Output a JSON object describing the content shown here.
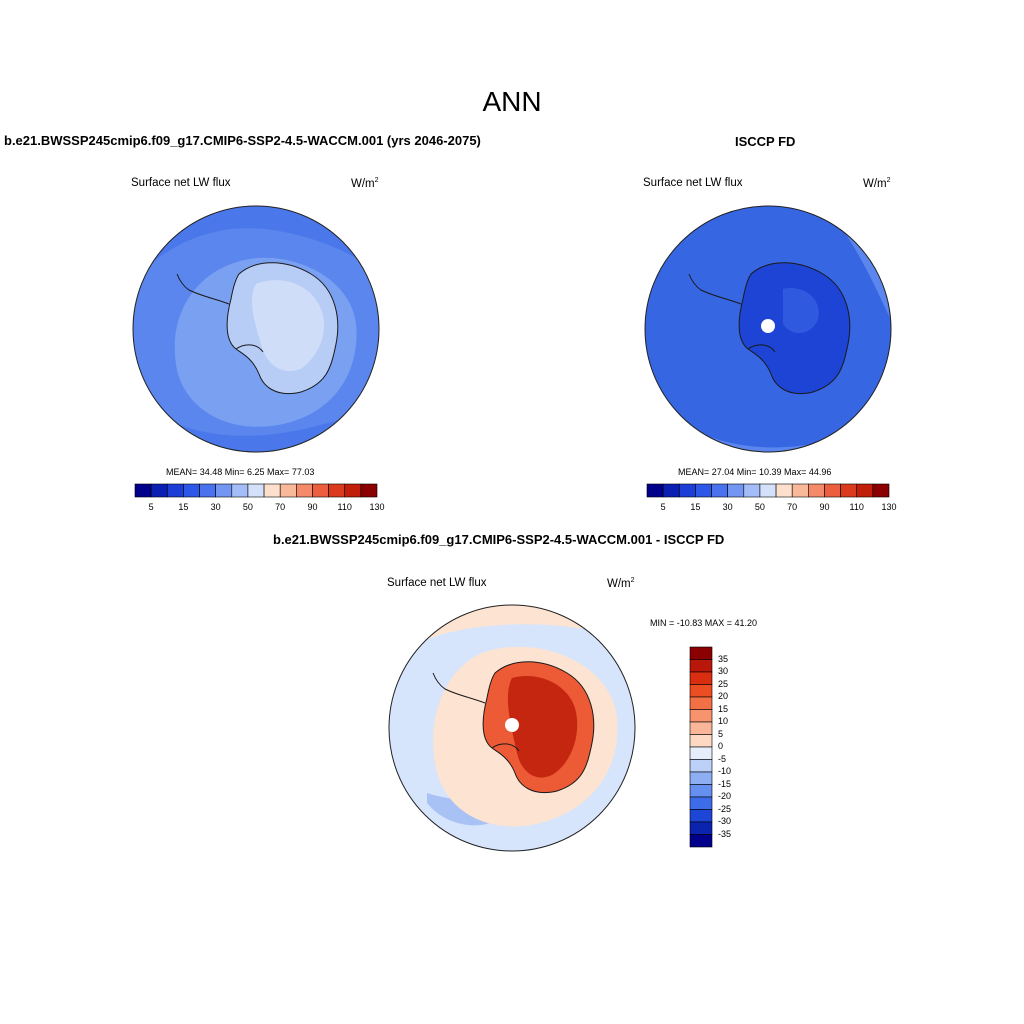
{
  "title": "ANN",
  "panels": {
    "model": {
      "title": "b.e21.BWSSP245cmip6.f09_g17.CMIP6-SSP2-4.5-WACCM.001 (yrs 2046-2075)",
      "variable": "Surface net LW flux",
      "unit": "W/m",
      "unit_exp": "2",
      "stats": "MEAN=  34.48  Min=   6.25  Max=  77.03"
    },
    "obs": {
      "title": "ISCCP FD",
      "variable": "Surface net LW flux",
      "unit": "W/m",
      "unit_exp": "2",
      "stats": "MEAN=  27.04  Min=  10.39  Max=  44.96"
    },
    "diff": {
      "title": "b.e21.BWSSP245cmip6.f09_g17.CMIP6-SSP2-4.5-WACCM.001 - ISCCP FD",
      "variable": "Surface net LW flux",
      "unit": "W/m",
      "unit_exp": "2",
      "stats": "MIN = -10.83 MAX =  41.20"
    }
  },
  "colorbar_abs": {
    "tick_labels": [
      "5",
      "15",
      "30",
      "50",
      "70",
      "90",
      "110",
      "130"
    ],
    "colors": [
      "#00008b",
      "#0a20b3",
      "#1a3ed6",
      "#2d57e6",
      "#4a72ee",
      "#7396f2",
      "#a4bcf7",
      "#d3e1fb",
      "#fde0cc",
      "#f9b89a",
      "#f48a6a",
      "#eb5f3f",
      "#dc3a1c",
      "#c21f0a",
      "#8b0000"
    ]
  },
  "colorbar_diff": {
    "tick_labels": [
      "35",
      "30",
      "25",
      "20",
      "15",
      "10",
      "5",
      "0",
      "-5",
      "-10",
      "-15",
      "-20",
      "-25",
      "-30",
      "-35"
    ],
    "colors": [
      "#8b0000",
      "#b8170a",
      "#d92f10",
      "#ec4d23",
      "#f36f46",
      "#f7946d",
      "#fab699",
      "#fdd9c4",
      "#e6eefc",
      "#bcd0f8",
      "#8eaef4",
      "#6690f0",
      "#3d6ce8",
      "#1d45d6",
      "#0a24b0",
      "#00008b"
    ]
  },
  "map_colors": {
    "ocean_model": "#5a86ee",
    "ocean_model_far": "#4a78ea",
    "land_model": "#b8cdf6",
    "land_model_light": "#cfddf8",
    "ocean_obs": "#3766e3",
    "land_obs": "#1d44d5",
    "diff_ocean": "#d6e5fb",
    "diff_ring": "#fde3d2",
    "diff_land": "#ec5a36",
    "diff_land_dark": "#c4260f",
    "coast": "#1a1a1a"
  }
}
